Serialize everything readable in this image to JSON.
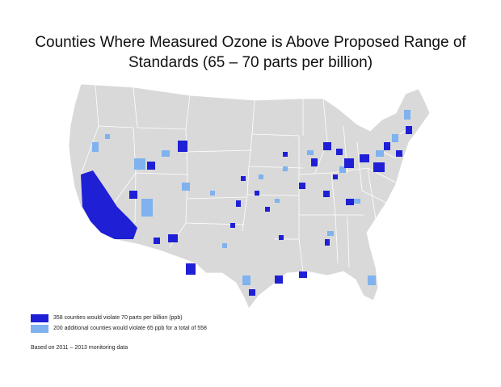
{
  "title": {
    "line1": "Counties Where Measured Ozone is Above Proposed Range of",
    "line2": "Standards (65 – 70 parts per billion)"
  },
  "colors": {
    "land": "#d9d9d9",
    "border": "#ffffff",
    "violate70": "#1f1fd6",
    "violate65": "#7fb2ee"
  },
  "legend": [
    {
      "label": "358 counties would violate 70 parts per billion (ppb)",
      "color": "#1f1fd6"
    },
    {
      "label": "200 additional counties would violate 65 ppb for a total of 558",
      "color": "#7fb2ee"
    }
  ],
  "source_note": "Based on 2011 – 2013 monitoring data"
}
